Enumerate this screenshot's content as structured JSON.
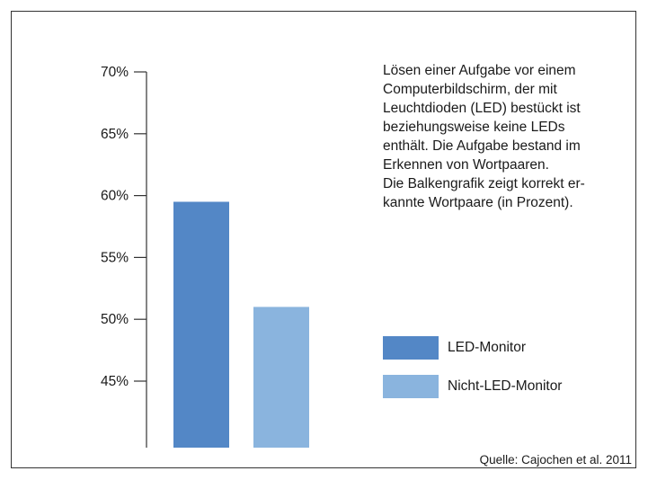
{
  "chart_data": {
    "type": "bar",
    "categories": [
      "LED-Monitor",
      "Nicht-LED-Monitor"
    ],
    "values": [
      59.5,
      51
    ],
    "colors": [
      "#5387c6",
      "#8ab4de"
    ],
    "ylim": [
      40,
      70
    ],
    "yticks": [
      45,
      50,
      55,
      60,
      65,
      70
    ],
    "ytick_labels": [
      "45%",
      "50%",
      "55%",
      "60%",
      "65%",
      "70%"
    ],
    "grid": false
  },
  "description": "Lösen einer Aufgabe vor einem\nComputerbildschirm, der mit\nLeuchtdioden (LED) bestückt ist\nbeziehungsweise keine LEDs\nenthält. Die Aufgabe bestand im\nErkennen von Wortpaaren.\nDie Balkengrafik zeigt korrekt er-\nkannte Wortpaare (in Prozent).",
  "legend": [
    {
      "label": "LED-Monitor",
      "color": "#5387c6"
    },
    {
      "label": "Nicht-LED-Monitor",
      "color": "#8ab4de"
    }
  ],
  "source": "Quelle: Cajochen et al. 2011"
}
